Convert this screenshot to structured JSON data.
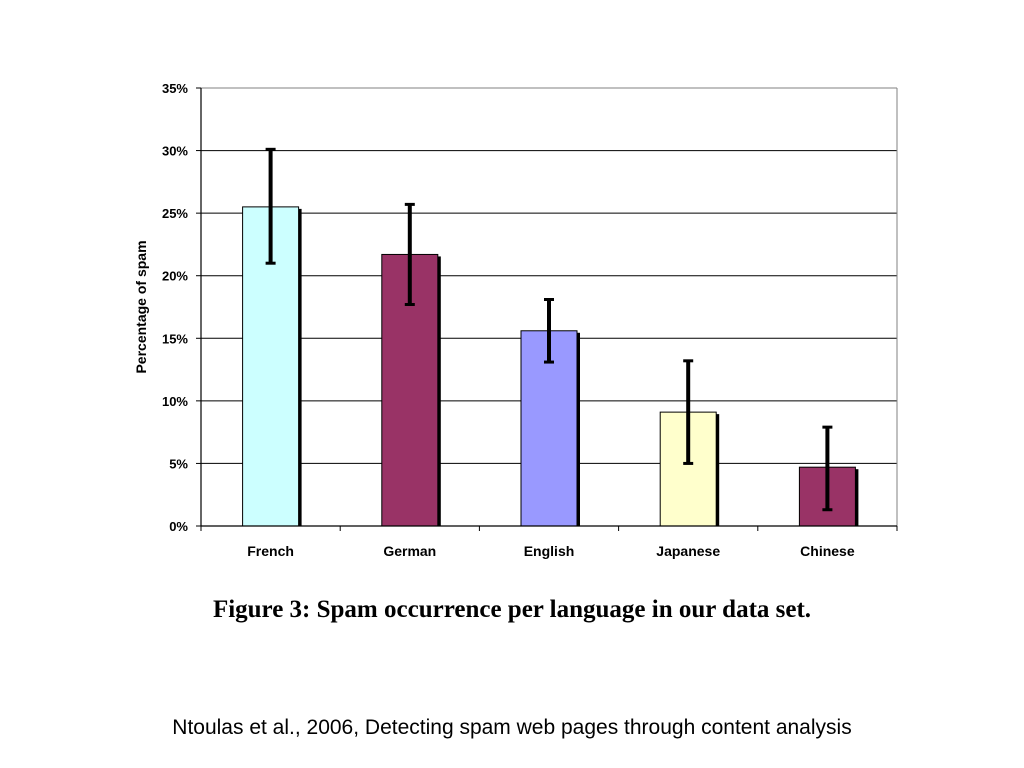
{
  "chart_data": {
    "type": "bar",
    "categories": [
      "French",
      "German",
      "English",
      "Japanese",
      "Chinese"
    ],
    "values": [
      25.5,
      21.7,
      15.6,
      9.1,
      4.7
    ],
    "error_low": [
      21.0,
      17.7,
      13.1,
      5.0,
      1.3
    ],
    "error_high": [
      30.1,
      25.7,
      18.1,
      13.2,
      7.9
    ],
    "bar_colors": [
      "#ccffff",
      "#993366",
      "#9999ff",
      "#ffffcc",
      "#993366"
    ],
    "ylabel": "Percentage of spam",
    "xlabel": "",
    "ylim": [
      0,
      35
    ],
    "yticks": [
      "0%",
      "5%",
      "10%",
      "15%",
      "20%",
      "25%",
      "30%",
      "35%"
    ],
    "ytick_values": [
      0,
      5,
      10,
      15,
      20,
      25,
      30,
      35
    ],
    "grid": true
  },
  "caption": "Figure 3: Spam occurrence per language in our data set.",
  "citation": "Ntoulas et al., 2006, Detecting spam web pages through content analysis"
}
